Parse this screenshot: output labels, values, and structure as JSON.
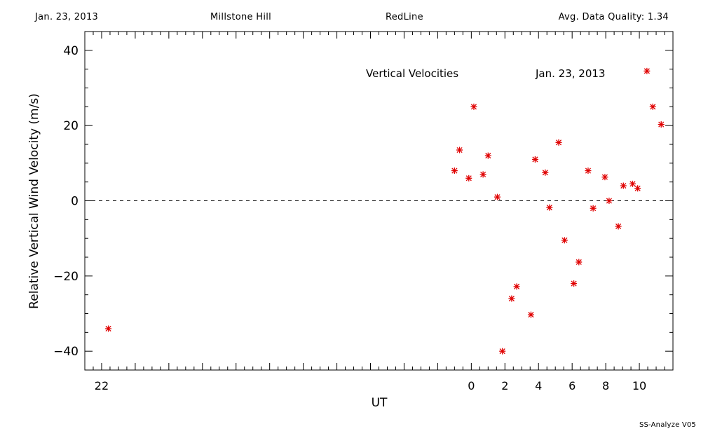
{
  "header": {
    "date": "Jan. 23, 2013",
    "site": "Millstone Hill",
    "line": "RedLine",
    "quality": "Avg. Data Quality: 1.34"
  },
  "footer": "SS-Analyze V05",
  "chart_data": {
    "type": "scatter",
    "title": "Vertical Velocities",
    "subtitle": "Jan. 23, 2013",
    "xlabel": "UT",
    "ylabel": "Relative Vertical Wind Velocity (m/s)",
    "xlim": [
      -23.0,
      12.0
    ],
    "ylim": [
      -45,
      45
    ],
    "x_ticks": [
      -22,
      0,
      2,
      4,
      6,
      8,
      10
    ],
    "x_tick_labels": [
      "22",
      "0",
      "2",
      "4",
      "6",
      "8",
      "10"
    ],
    "y_ticks": [
      -40,
      -20,
      0,
      20,
      40
    ],
    "y_tick_labels": [
      "−40",
      "−20",
      "0",
      "20",
      "40"
    ],
    "marker": "*",
    "marker_color": "#e00000",
    "zero_line": "dashed",
    "series": [
      {
        "x": [
          -21.6,
          -1.0,
          -0.7,
          -0.15,
          0.15,
          0.7,
          1.0,
          1.55,
          1.85,
          2.4,
          2.7,
          3.55,
          3.8,
          4.4,
          4.65,
          5.2,
          5.55,
          6.1,
          6.4,
          6.95,
          7.25,
          7.95,
          8.2,
          8.75,
          9.05,
          9.6,
          9.9,
          10.45,
          10.8,
          11.3
        ],
        "y": [
          -34,
          8,
          13.5,
          6,
          25,
          7,
          12,
          1,
          -40,
          -26,
          -22.8,
          -30.3,
          11,
          7.5,
          -1.8,
          15.5,
          -10.5,
          -22,
          -16.3,
          8,
          -2,
          6.3,
          0,
          -6.8,
          4,
          4.5,
          3.3,
          34.5,
          25,
          20.3
        ]
      }
    ]
  }
}
